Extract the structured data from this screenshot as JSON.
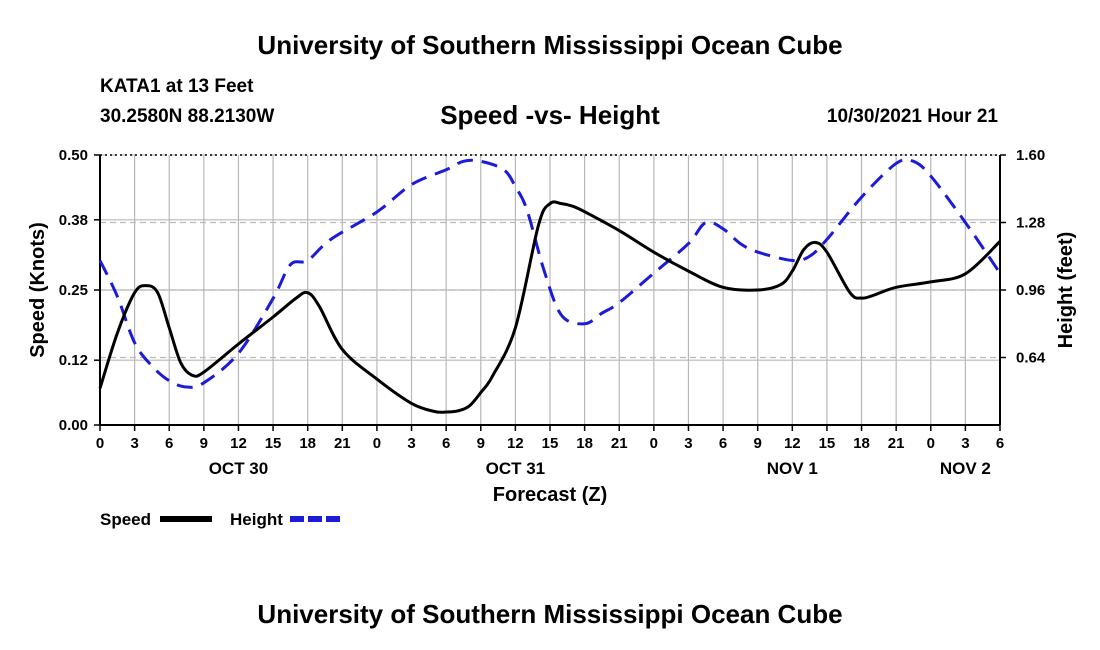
{
  "header": {
    "title": "University of Southern Mississippi Ocean Cube",
    "station": "KATA1 at 13 Feet",
    "coords": "30.2580N  88.2130W",
    "subtitle": "Speed -vs- Height",
    "datetime": "10/30/2021 Hour 21"
  },
  "footer": {
    "title": "University of Southern Mississippi Ocean Cube"
  },
  "chart_data": {
    "type": "line",
    "title": "Speed -vs- Height",
    "xlabel": "Forecast (Z)",
    "ylabel_left": "Speed (Knots)",
    "ylabel_right": "Height (feet)",
    "x_range_hours": [
      0,
      78
    ],
    "x_tick_labels": [
      "0",
      "3",
      "6",
      "9",
      "12",
      "15",
      "18",
      "21",
      "0",
      "3",
      "6",
      "9",
      "12",
      "15",
      "18",
      "21",
      "0",
      "3",
      "6",
      "9",
      "12",
      "15",
      "18",
      "21",
      "0",
      "3",
      "6"
    ],
    "date_labels": [
      {
        "label": "OCT 30",
        "hour": 12
      },
      {
        "label": "OCT 31",
        "hour": 36
      },
      {
        "label": "NOV 1",
        "hour": 60
      },
      {
        "label": "NOV 2",
        "hour": 75
      }
    ],
    "ylim_left": [
      0,
      0.5
    ],
    "yticks_left": [
      "0.00",
      "0.12",
      "0.25",
      "0.38",
      "0.50"
    ],
    "ylim_right": [
      0.32,
      1.6
    ],
    "yticks_right": [
      "0.64",
      "0.96",
      "1.28",
      "1.60"
    ],
    "grid": true,
    "series": [
      {
        "name": "Speed",
        "axis": "left",
        "color": "#000000",
        "style": "solid",
        "x": [
          0,
          1.5,
          3,
          4,
          5,
          6,
          7,
          8,
          9,
          12,
          15,
          17,
          18,
          19,
          21,
          24,
          27,
          29,
          30,
          31,
          32,
          33,
          34,
          36,
          38,
          39,
          40,
          41,
          42,
          45,
          48,
          51,
          54,
          57,
          59,
          60,
          61,
          62,
          63,
          65,
          66,
          67,
          69,
          72,
          75,
          78
        ],
        "y": [
          0.068,
          0.17,
          0.245,
          0.258,
          0.245,
          0.18,
          0.115,
          0.092,
          0.098,
          0.15,
          0.2,
          0.235,
          0.245,
          0.22,
          0.14,
          0.085,
          0.04,
          0.025,
          0.024,
          0.026,
          0.035,
          0.06,
          0.09,
          0.18,
          0.37,
          0.41,
          0.41,
          0.405,
          0.395,
          0.36,
          0.32,
          0.285,
          0.255,
          0.25,
          0.26,
          0.285,
          0.325,
          0.338,
          0.32,
          0.245,
          0.235,
          0.24,
          0.255,
          0.265,
          0.28,
          0.34
        ]
      },
      {
        "name": "Height",
        "axis": "right",
        "color": "#1b1bd8",
        "style": "dashed",
        "x": [
          0,
          1.5,
          3,
          4.5,
          6,
          7.5,
          9,
          12,
          15,
          16.5,
          18,
          20,
          24,
          27,
          30,
          31.5,
          33,
          35,
          36,
          37,
          38.5,
          40,
          42,
          43.5,
          45,
          48,
          51,
          52.5,
          54,
          55.5,
          57,
          60,
          61.5,
          63,
          66,
          69,
          70.5,
          72,
          75,
          78
        ],
        "y": [
          1.1,
          0.93,
          0.71,
          0.6,
          0.53,
          0.5,
          0.52,
          0.66,
          0.92,
          1.08,
          1.1,
          1.2,
          1.33,
          1.46,
          1.53,
          1.57,
          1.57,
          1.53,
          1.45,
          1.34,
          1.05,
          0.84,
          0.8,
          0.85,
          0.9,
          1.04,
          1.18,
          1.28,
          1.25,
          1.18,
          1.14,
          1.1,
          1.12,
          1.2,
          1.4,
          1.56,
          1.57,
          1.5,
          1.28,
          1.04
        ]
      }
    ],
    "legend": {
      "placement": "bottom-left",
      "entries": [
        "Speed",
        "Height"
      ]
    }
  }
}
